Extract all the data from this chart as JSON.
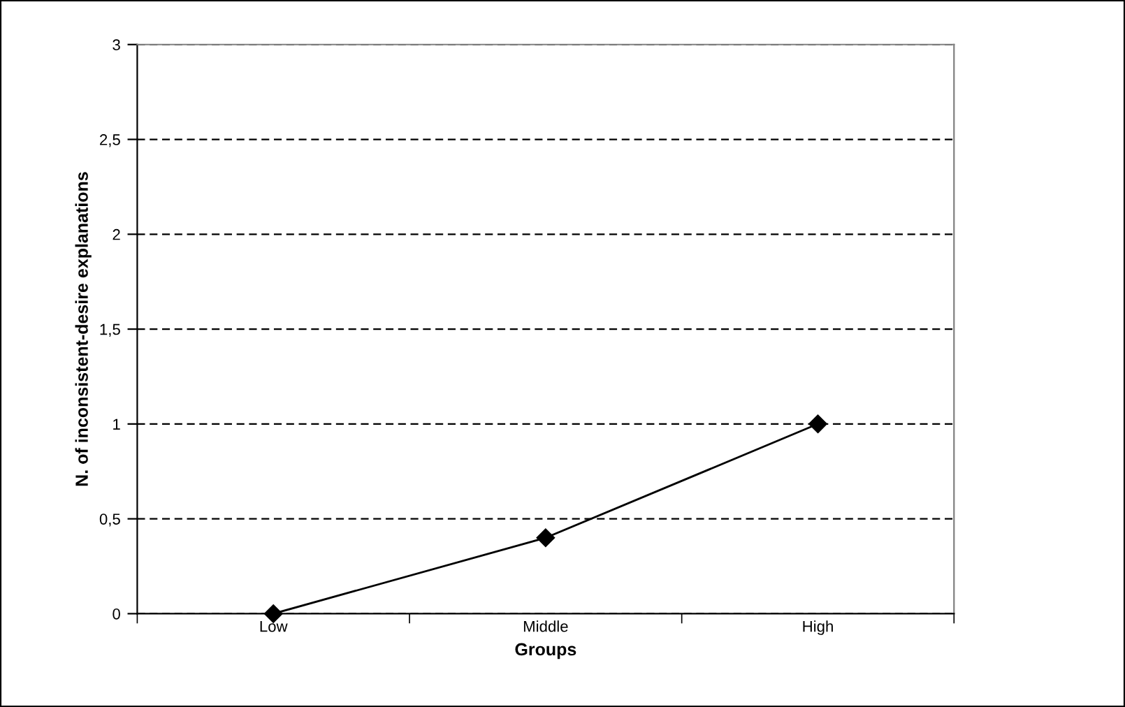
{
  "chart_data": {
    "type": "line",
    "xlabel": "Groups",
    "ylabel": "N. of inconsistent-desire explanations",
    "categories": [
      "Low",
      "Middle",
      "High"
    ],
    "series": [
      {
        "color": "#000000",
        "values": [
          0,
          0.4,
          1
        ]
      }
    ],
    "ylim": [
      0,
      3
    ],
    "yticks": [
      0,
      {
        "value": 0.5,
        "label": "0,5"
      },
      1,
      {
        "value": 1.5,
        "label": "1,5"
      },
      2,
      {
        "value": 2.5,
        "label": "2,5"
      },
      3
    ],
    "grid": "y",
    "marker": "diamond",
    "line_style": "solid",
    "legend": false
  }
}
